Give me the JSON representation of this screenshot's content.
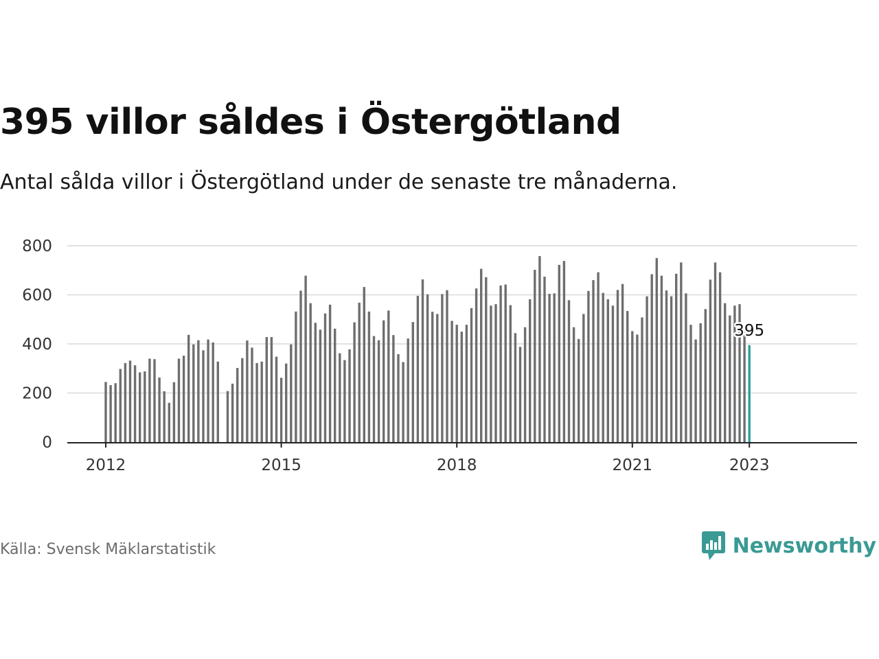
{
  "title": "395 villor såldes i Östergötland",
  "subtitle": "Antal sålda villor i Östergötland under de senaste tre månaderna.",
  "source": "Källa: Svensk Mäklarstatistik",
  "brand": {
    "name": "Newsworthy",
    "icon": "newsworthy-logo-icon",
    "color": "#3a9a94"
  },
  "chart_data": {
    "type": "bar",
    "title": "395 villor såldes i Östergötland",
    "subtitle": "Antal sålda villor i Östergötland under de senaste tre månaderna.",
    "xlabel": "",
    "ylabel": "",
    "ylim": [
      0,
      800
    ],
    "yticks": [
      0,
      200,
      400,
      600,
      800
    ],
    "xticks": [
      "2012",
      "2015",
      "2018",
      "2021",
      "2023"
    ],
    "grid": true,
    "bar_color": "#6e6e6e",
    "highlight_color": "#2aa198",
    "highlight_label": "395",
    "categories": [
      "2012-01",
      "2012-02",
      "2012-03",
      "2012-04",
      "2012-05",
      "2012-06",
      "2012-07",
      "2012-08",
      "2012-09",
      "2012-10",
      "2012-11",
      "2012-12",
      "2013-01",
      "2013-02",
      "2013-03",
      "2013-04",
      "2013-05",
      "2013-06",
      "2013-07",
      "2013-08",
      "2013-09",
      "2013-10",
      "2013-11",
      "2013-12",
      "2014-01",
      "2014-02",
      "2014-03",
      "2014-04",
      "2014-05",
      "2014-06",
      "2014-07",
      "2014-08",
      "2014-09",
      "2014-10",
      "2014-11",
      "2014-12",
      "2015-01",
      "2015-02",
      "2015-03",
      "2015-04",
      "2015-05",
      "2015-06",
      "2015-07",
      "2015-08",
      "2015-09",
      "2015-10",
      "2015-11",
      "2015-12",
      "2016-01",
      "2016-02",
      "2016-03",
      "2016-04",
      "2016-05",
      "2016-06",
      "2016-07",
      "2016-08",
      "2016-09",
      "2016-10",
      "2016-11",
      "2016-12",
      "2017-01",
      "2017-02",
      "2017-03",
      "2017-04",
      "2017-05",
      "2017-06",
      "2017-07",
      "2017-08",
      "2017-09",
      "2017-10",
      "2017-11",
      "2017-12",
      "2018-01",
      "2018-02",
      "2018-03",
      "2018-04",
      "2018-05",
      "2018-06",
      "2018-07",
      "2018-08",
      "2018-09",
      "2018-10",
      "2018-11",
      "2018-12",
      "2019-01",
      "2019-02",
      "2019-03",
      "2019-04",
      "2019-05",
      "2019-06",
      "2019-07",
      "2019-08",
      "2019-09",
      "2019-10",
      "2019-11",
      "2019-12",
      "2020-01",
      "2020-02",
      "2020-03",
      "2020-04",
      "2020-05",
      "2020-06",
      "2020-07",
      "2020-08",
      "2020-09",
      "2020-10",
      "2020-11",
      "2020-12",
      "2021-01",
      "2021-02",
      "2021-03",
      "2021-04",
      "2021-05",
      "2021-06",
      "2021-07",
      "2021-08",
      "2021-09",
      "2021-10",
      "2021-11",
      "2021-12",
      "2022-01",
      "2022-02",
      "2022-03",
      "2022-04",
      "2022-05",
      "2022-06",
      "2022-07",
      "2022-08",
      "2022-09",
      "2022-10",
      "2022-11",
      "2022-12",
      "2023-01"
    ],
    "values": [
      245,
      232,
      240,
      298,
      322,
      332,
      313,
      284,
      288,
      340,
      338,
      263,
      207,
      160,
      244,
      340,
      352,
      437,
      398,
      415,
      374,
      418,
      406,
      328,
      null,
      208,
      238,
      302,
      342,
      414,
      385,
      322,
      328,
      428,
      428,
      348,
      262,
      320,
      398,
      532,
      617,
      678,
      566,
      486,
      458,
      524,
      560,
      462,
      362,
      334,
      378,
      488,
      568,
      632,
      532,
      432,
      415,
      496,
      536,
      436,
      358,
      326,
      422,
      489,
      596,
      663,
      602,
      531,
      522,
      603,
      619,
      494,
      478,
      450,
      478,
      546,
      626,
      706,
      672,
      556,
      562,
      638,
      642,
      558,
      444,
      388,
      468,
      582,
      702,
      758,
      674,
      604,
      606,
      722,
      738,
      578,
      468,
      420,
      522,
      616,
      660,
      692,
      608,
      582,
      556,
      620,
      644,
      534,
      452,
      438,
      508,
      594,
      684,
      750,
      678,
      618,
      594,
      686,
      732,
      606,
      478,
      418,
      484,
      542,
      662,
      732,
      692,
      566,
      516,
      556,
      562,
      470,
      395
    ]
  }
}
